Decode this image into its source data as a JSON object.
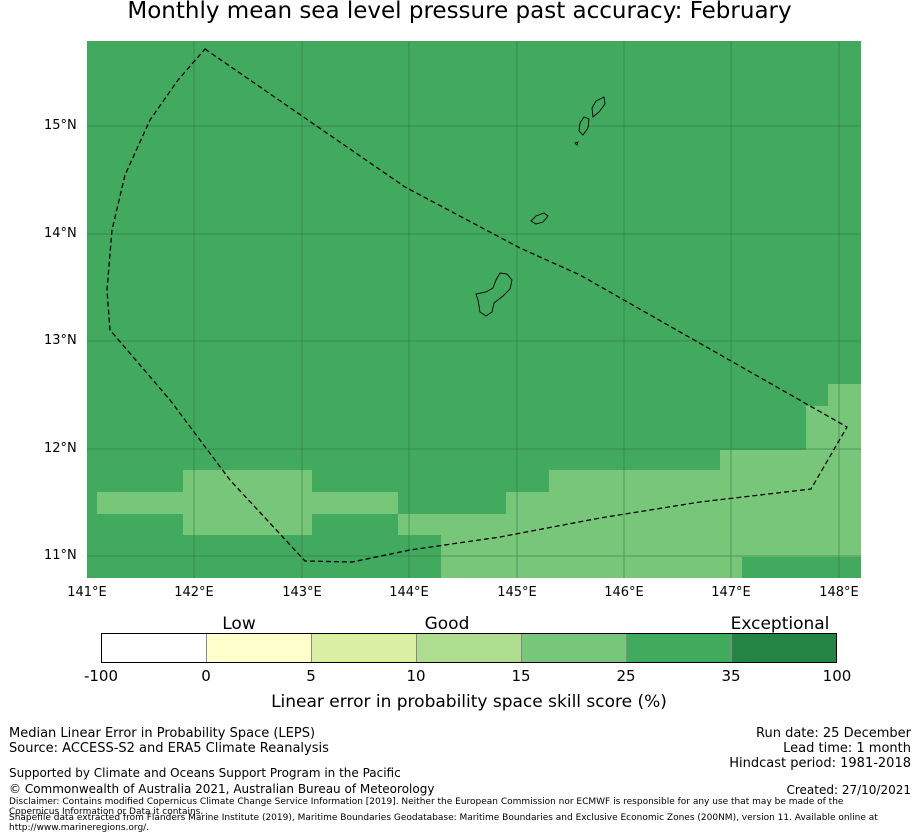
{
  "title": "Monthly mean sea level pressure past accuracy: February",
  "map": {
    "lat_labels": [
      "15°N",
      "14°N",
      "13°N",
      "12°N",
      "11°N"
    ],
    "lon_labels": [
      "141°E",
      "142°E",
      "143°E",
      "144°E",
      "145°E",
      "146°E",
      "147°E",
      "148°E"
    ],
    "lat_range": [
      10.8,
      15.8
    ],
    "lon_range": [
      141.0,
      148.2
    ],
    "colors": {
      "skill_25_35": "#41aa5e",
      "skill_15_25": "#78c679",
      "coast": "#000000",
      "eez_boundary": "#000000",
      "gridline": "#2e7040"
    }
  },
  "colorbar": {
    "category_labels": [
      "Low",
      "Good",
      "Exceptional"
    ],
    "ticks": [
      "-100",
      "0",
      "5",
      "10",
      "15",
      "25",
      "35",
      "100"
    ],
    "colors": [
      "#ffffff",
      "#ffffcc",
      "#d9f0a3",
      "#addd8e",
      "#78c679",
      "#41ab5d",
      "#238443"
    ],
    "label": "Linear error in probability space skill score (%)"
  },
  "info_left": {
    "line1": "Median Linear Error in Probability Space (LEPS)",
    "line2": "Source: ACCESS-S2 and ERA5 Climate Reanalysis",
    "supported": "Supported by Climate and Oceans Support Program in the Pacific",
    "copyright": "© Commonwealth of Australia 2021, Australian Bureau of Meteorology",
    "disclaimer": "Disclaimer: Contains modified Copernicus Climate Change Service Information [2019]. Neither the European Commission nor ECMWF is responsible for any use that may be made of the Copernicus Information or Data it contains.",
    "shapefile": "Shapefile data extracted from Flanders Marine Institute (2019), Maritime Boundaries Geodatabase: Maritime Boundaries and Exclusive Economic Zones (200NM), version 11. Available online at http://www.marineregions.org/."
  },
  "info_right": {
    "run_date": "Run date: 25 December",
    "lead_time": "Lead time: 1 month",
    "hindcast": "Hindcast period: 1981-2018",
    "created": "Created: 27/10/2021"
  }
}
